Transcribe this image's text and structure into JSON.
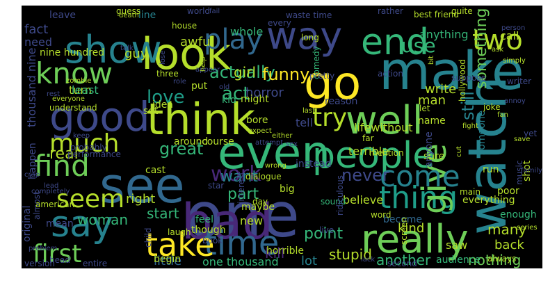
{
  "image": {
    "background": "#000000",
    "palette": [
      "#fde725",
      "#b5de2b",
      "#6ece58",
      "#35b779",
      "#1f9e89",
      "#26828e",
      "#31688e",
      "#3e4989",
      "#482878",
      "#440154"
    ]
  },
  "words": [
    {
      "t": "one",
      "c": "#3e4989"
    },
    {
      "t": "bad",
      "c": "#482878"
    },
    {
      "t": "watch",
      "c": "#26828e"
    },
    {
      "t": "make",
      "c": "#26828e"
    },
    {
      "t": "even",
      "c": "#35b779"
    },
    {
      "t": "see",
      "c": "#31688e"
    },
    {
      "t": "go",
      "c": "#fde725"
    },
    {
      "t": "look",
      "c": "#b5de2b"
    },
    {
      "t": "think",
      "c": "#b5de2b"
    },
    {
      "t": "good",
      "c": "#3e4989"
    },
    {
      "t": "well",
      "c": "#6ece58"
    },
    {
      "t": "people",
      "c": "#35b779"
    },
    {
      "t": "show",
      "c": "#26828e"
    },
    {
      "t": "way",
      "c": "#3e4989"
    },
    {
      "t": "end",
      "c": "#35b779"
    },
    {
      "t": "really",
      "c": "#6ece58"
    },
    {
      "t": "time",
      "c": "#31688e"
    },
    {
      "t": "say",
      "c": "#26828e"
    },
    {
      "t": "take",
      "c": "#fde725"
    },
    {
      "t": "thing",
      "c": "#1f9e89"
    },
    {
      "t": "give",
      "c": "#6ece58"
    },
    {
      "t": "come",
      "c": "#26828e"
    },
    {
      "t": "know",
      "c": "#6ece58"
    },
    {
      "t": "play",
      "c": "#31688e"
    },
    {
      "t": "two",
      "c": "#b5de2b"
    },
    {
      "t": "find",
      "c": "#6ece58"
    },
    {
      "t": "much",
      "c": "#b5de2b"
    },
    {
      "t": "first",
      "c": "#6ece58"
    },
    {
      "t": "seem",
      "c": "#b5de2b"
    },
    {
      "t": "try",
      "c": "#b5de2b"
    },
    {
      "t": "work",
      "c": "#482878"
    },
    {
      "t": "use",
      "c": "#35b779"
    },
    {
      "t": "love",
      "c": "#1f9e89"
    },
    {
      "t": "act",
      "c": "#35b779"
    },
    {
      "t": "actually",
      "c": "#35b779"
    },
    {
      "t": "funny",
      "c": "#fde725"
    },
    {
      "t": "great",
      "c": "#35b779"
    },
    {
      "t": "real",
      "c": "#b5de2b"
    },
    {
      "t": "want",
      "c": "#26828e"
    },
    {
      "t": "part",
      "c": "#35b779"
    },
    {
      "t": "never",
      "c": "#3e4989"
    },
    {
      "t": "nothing",
      "c": "#6ece58"
    },
    {
      "t": "little",
      "c": "#31688e"
    },
    {
      "t": "back",
      "c": "#b5de2b"
    },
    {
      "t": "still",
      "c": "#26828e"
    },
    {
      "t": "something",
      "c": "#6ece58"
    },
    {
      "t": "many",
      "c": "#b5de2b"
    },
    {
      "t": "point",
      "c": "#35b779"
    },
    {
      "t": "kill",
      "c": "#482878"
    },
    {
      "t": "stupid",
      "c": "#b5de2b"
    },
    {
      "t": "another",
      "c": "#35b779"
    },
    {
      "t": "start",
      "c": "#35b779"
    },
    {
      "t": "right",
      "c": "#b5de2b"
    },
    {
      "t": "woman",
      "c": "#35b779"
    },
    {
      "t": "guy",
      "c": "#b5de2b"
    },
    {
      "t": "girl",
      "c": "#b5de2b"
    },
    {
      "t": "man",
      "c": "#b5de2b"
    },
    {
      "t": "write",
      "c": "#b5de2b"
    },
    {
      "t": "kind",
      "c": "#b5de2b"
    },
    {
      "t": "one thousand",
      "c": "#35b779"
    },
    {
      "t": "lot",
      "c": "#26828e"
    },
    {
      "t": "saw",
      "c": "#b5de2b"
    },
    {
      "t": "fact",
      "c": "#3e4989"
    },
    {
      "t": "need",
      "c": "#3e4989"
    },
    {
      "t": "line",
      "c": "#26828e"
    },
    {
      "t": "leave",
      "c": "#3e4989"
    },
    {
      "t": "awful",
      "c": "#b5de2b"
    },
    {
      "t": "horror",
      "c": "#3e4989"
    },
    {
      "t": "whole",
      "c": "#35b779"
    },
    {
      "t": "anything",
      "c": "#35b779"
    },
    {
      "t": "call",
      "c": "#b5de2b"
    },
    {
      "t": "nine hundred",
      "c": "#b5de2b"
    },
    {
      "t": "thousand nine",
      "c": "#3e4989"
    },
    {
      "t": "turn",
      "c": "#b5de2b"
    },
    {
      "t": "least",
      "c": "#35b779"
    },
    {
      "t": "kid",
      "c": "#35b779"
    },
    {
      "t": "tell",
      "c": "#3e4989"
    },
    {
      "t": "lifewithout",
      "c": "#b5de2b"
    },
    {
      "t": "terrible",
      "c": "#b5de2b"
    },
    {
      "t": "instead",
      "c": "#3e4989"
    },
    {
      "t": "believe",
      "c": "#b5de2b"
    },
    {
      "t": "feel",
      "c": "#35b779"
    },
    {
      "t": "new",
      "c": "#b5de2b"
    },
    {
      "t": "cast",
      "c": "#b5de2b"
    },
    {
      "t": "might",
      "c": "#b5de2b"
    },
    {
      "t": "reason",
      "c": "#3e4989"
    },
    {
      "t": "original",
      "c": "#3e4989"
    },
    {
      "t": "shot",
      "c": "#b5de2b"
    },
    {
      "t": "become",
      "c": "#31688e"
    },
    {
      "t": "enough",
      "c": "#35b779"
    },
    {
      "t": "horrible",
      "c": "#b5de2b"
    },
    {
      "t": "maybe",
      "c": "#b5de2b"
    },
    {
      "t": "though",
      "c": "#b5de2b"
    },
    {
      "t": "audience",
      "c": "#35b779"
    },
    {
      "t": "happen",
      "c": "#3e4989"
    },
    {
      "t": "put",
      "c": "#b5de2b"
    },
    {
      "t": "idea",
      "c": "#b5de2b"
    },
    {
      "t": "set",
      "c": "#b5de2b"
    },
    {
      "t": "name",
      "c": "#b5de2b"
    },
    {
      "t": "sure",
      "c": "#b5de2b"
    },
    {
      "t": "bore",
      "c": "#b5de2b"
    },
    {
      "t": "course",
      "c": "#b5de2b"
    },
    {
      "t": "around",
      "c": "#b5de2b"
    },
    {
      "t": "someone",
      "c": "#26828e"
    },
    {
      "t": "anyone",
      "c": "#3e4989"
    },
    {
      "t": "big",
      "c": "#b5de2b"
    },
    {
      "t": "poor",
      "c": "#b5de2b"
    },
    {
      "t": "run",
      "c": "#b5de2b"
    },
    {
      "t": "mean",
      "c": "#3e4989"
    },
    {
      "t": "begin",
      "c": "#b5de2b"
    },
    {
      "t": "everything",
      "c": "#b5de2b"
    },
    {
      "t": "comedy",
      "c": "#35b779"
    },
    {
      "t": "hollywood",
      "c": "#b5de2b"
    },
    {
      "t": "probably",
      "c": "#3e4989"
    },
    {
      "t": "best friend",
      "c": "#b5de2b"
    },
    {
      "t": "waste time",
      "c": "#3e4989"
    },
    {
      "t": "suppose",
      "c": "#3e4989"
    },
    {
      "t": "every",
      "c": "#3e4989"
    },
    {
      "t": "action",
      "c": "#3e4989"
    },
    {
      "t": "let",
      "c": "#b5de2b"
    },
    {
      "t": "joke",
      "c": "#b5de2b"
    },
    {
      "t": "day",
      "c": "#b5de2b"
    },
    {
      "t": "laugh",
      "c": "#b5de2b"
    },
    {
      "t": "star",
      "c": "#3e4989"
    },
    {
      "t": "guess",
      "c": "#b5de2b"
    },
    {
      "t": "world",
      "c": "#3e4989"
    },
    {
      "t": "house",
      "c": "#b5de2b"
    },
    {
      "t": "long",
      "c": "#b5de2b"
    },
    {
      "t": "pretty",
      "c": "#3e4989"
    },
    {
      "t": "quite",
      "c": "#b5de2b"
    },
    {
      "t": "rather",
      "c": "#3e4989"
    },
    {
      "t": "understand",
      "c": "#b5de2b"
    },
    {
      "t": "three",
      "c": "#b5de2b"
    },
    {
      "t": "performance",
      "c": "#3e4989"
    },
    {
      "t": "dialogue",
      "c": "#b5de2b"
    },
    {
      "t": "interest",
      "c": "#3e4989"
    },
    {
      "t": "sound",
      "c": "#35b779"
    },
    {
      "t": "ridiculous",
      "c": "#3e4989"
    },
    {
      "t": "word",
      "c": "#b5de2b"
    },
    {
      "t": "live",
      "c": "#3e4989"
    },
    {
      "t": "book",
      "c": "#3e4989"
    },
    {
      "t": "child",
      "c": "#3e4989"
    },
    {
      "t": "almost",
      "c": "#3e4989"
    },
    {
      "t": "american",
      "c": "#b5de2b"
    },
    {
      "t": "version",
      "c": "#3e4989"
    },
    {
      "t": "head",
      "c": "#3e4989"
    },
    {
      "t": "entire",
      "c": "#3e4989"
    },
    {
      "t": "second",
      "c": "#3e4989"
    },
    {
      "t": "always",
      "c": "#b5de2b"
    },
    {
      "t": "series",
      "c": "#b5de2b"
    },
    {
      "t": "music",
      "c": "#3e4989"
    },
    {
      "t": "screen",
      "c": "#b5de2b"
    },
    {
      "t": "main",
      "c": "#b5de2b"
    },
    {
      "t": "family",
      "c": "#3e4989"
    },
    {
      "t": "mention",
      "c": "#b5de2b"
    },
    {
      "t": "cut",
      "c": "#b5de2b"
    },
    {
      "t": "save",
      "c": "#b5de2b"
    },
    {
      "t": "yet",
      "c": "#3e4989"
    },
    {
      "t": "fan",
      "c": "#b5de2b"
    },
    {
      "t": "annoy",
      "c": "#3e4989"
    },
    {
      "t": "writer",
      "c": "#3e4989"
    },
    {
      "t": "fight",
      "c": "#b5de2b"
    },
    {
      "t": "far",
      "c": "#b5de2b"
    },
    {
      "t": "last",
      "c": "#b5de2b"
    },
    {
      "t": "either",
      "c": "#b5de2b"
    },
    {
      "t": "expect",
      "c": "#b5de2b"
    },
    {
      "t": "sex",
      "c": "#3e4989"
    },
    {
      "t": "attempt",
      "c": "#3e4989"
    },
    {
      "t": "wrong",
      "c": "#b5de2b"
    },
    {
      "t": "lack",
      "c": "#3e4989"
    },
    {
      "t": "keep",
      "c": "#3e4989"
    },
    {
      "t": "rest",
      "c": "#3e4989"
    },
    {
      "t": "zombie",
      "c": "#b5de2b"
    },
    {
      "t": "everyone",
      "c": "#b5de2b"
    },
    {
      "t": "old",
      "c": "#3e4989"
    },
    {
      "t": "appear",
      "c": "#3e4989"
    },
    {
      "t": "lose",
      "c": "#3e4989"
    },
    {
      "t": "role",
      "c": "#3e4989"
    },
    {
      "t": "help",
      "c": "#b5de2b"
    },
    {
      "t": "death",
      "c": "#b5de2b"
    },
    {
      "t": "talk",
      "c": "#3e4989"
    },
    {
      "t": "fail",
      "c": "#3e4989"
    },
    {
      "t": "ask",
      "c": "#b5de2b"
    },
    {
      "t": "person",
      "c": "#3e4989"
    },
    {
      "t": "bit",
      "c": "#b5de2b"
    },
    {
      "t": "simply",
      "c": "#b5de2b"
    },
    {
      "t": "completely",
      "c": "#3e4989"
    },
    {
      "t": "lead",
      "c": "#3e4989"
    },
    {
      "t": "crap",
      "c": "#3e4989"
    },
    {
      "t": "problem",
      "c": "#3e4989"
    },
    {
      "t": "may",
      "c": "#3e4989"
    },
    {
      "t": "oh",
      "c": "#3e4989"
    }
  ]
}
